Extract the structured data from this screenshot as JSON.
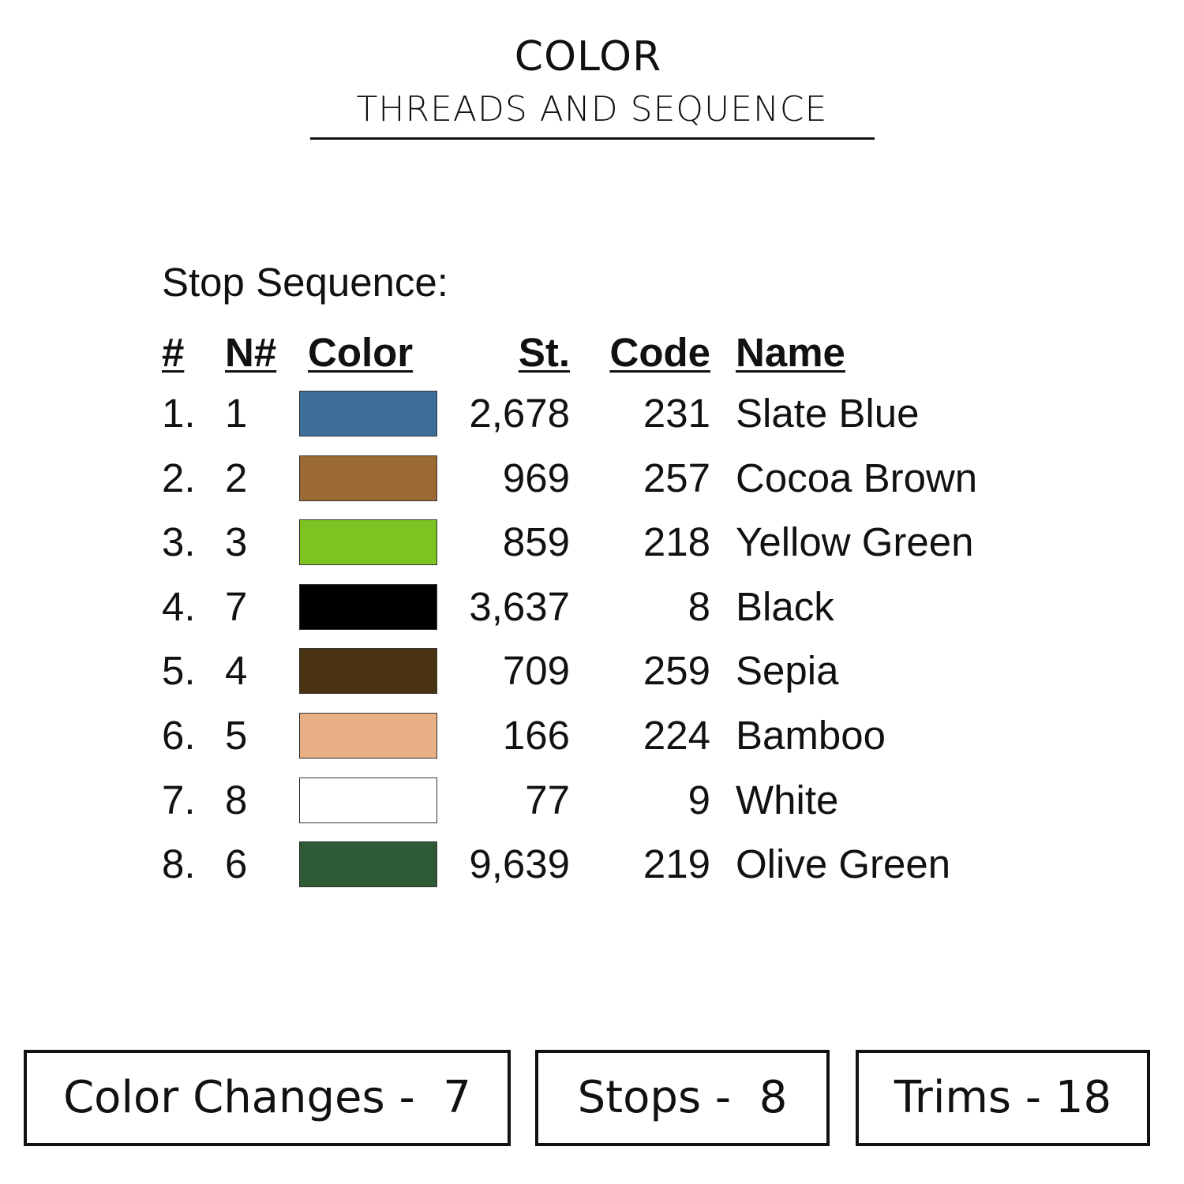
{
  "header": {
    "title": "COLOR",
    "subtitle": "THREADS AND SEQUENCE"
  },
  "sequence": {
    "label": "Stop Sequence:",
    "columns": {
      "num": "#",
      "needle": "N#",
      "color": "Color",
      "stitches": "St.",
      "code": "Code",
      "name": "Name"
    },
    "rows": [
      {
        "num": "1.",
        "needle": "1",
        "color": "#3d6d99",
        "stitches": "2,678",
        "code": "231",
        "name": "Slate Blue"
      },
      {
        "num": "2.",
        "needle": "2",
        "color": "#9b6a34",
        "stitches": "969",
        "code": "257",
        "name": "Cocoa Brown"
      },
      {
        "num": "3.",
        "needle": "3",
        "color": "#7dc423",
        "stitches": "859",
        "code": "218",
        "name": "Yellow Green"
      },
      {
        "num": "4.",
        "needle": "7",
        "color": "#000000",
        "stitches": "3,637",
        "code": "8",
        "name": "Black"
      },
      {
        "num": "5.",
        "needle": "4",
        "color": "#4a3310",
        "stitches": "709",
        "code": "259",
        "name": "Sepia"
      },
      {
        "num": "6.",
        "needle": "5",
        "color": "#e8ae84",
        "stitches": "166",
        "code": "224",
        "name": "Bamboo"
      },
      {
        "num": "7.",
        "needle": "8",
        "color": "#ffffff",
        "stitches": "77",
        "code": "9",
        "name": "White"
      },
      {
        "num": "8.",
        "needle": "6",
        "color": "#2e5a36",
        "stitches": "9,639",
        "code": "219",
        "name": "Olive Green"
      }
    ]
  },
  "summary": {
    "color_changes": "Color Changes -  7",
    "stops": "Stops -  8",
    "trims": "Trims - 18"
  }
}
